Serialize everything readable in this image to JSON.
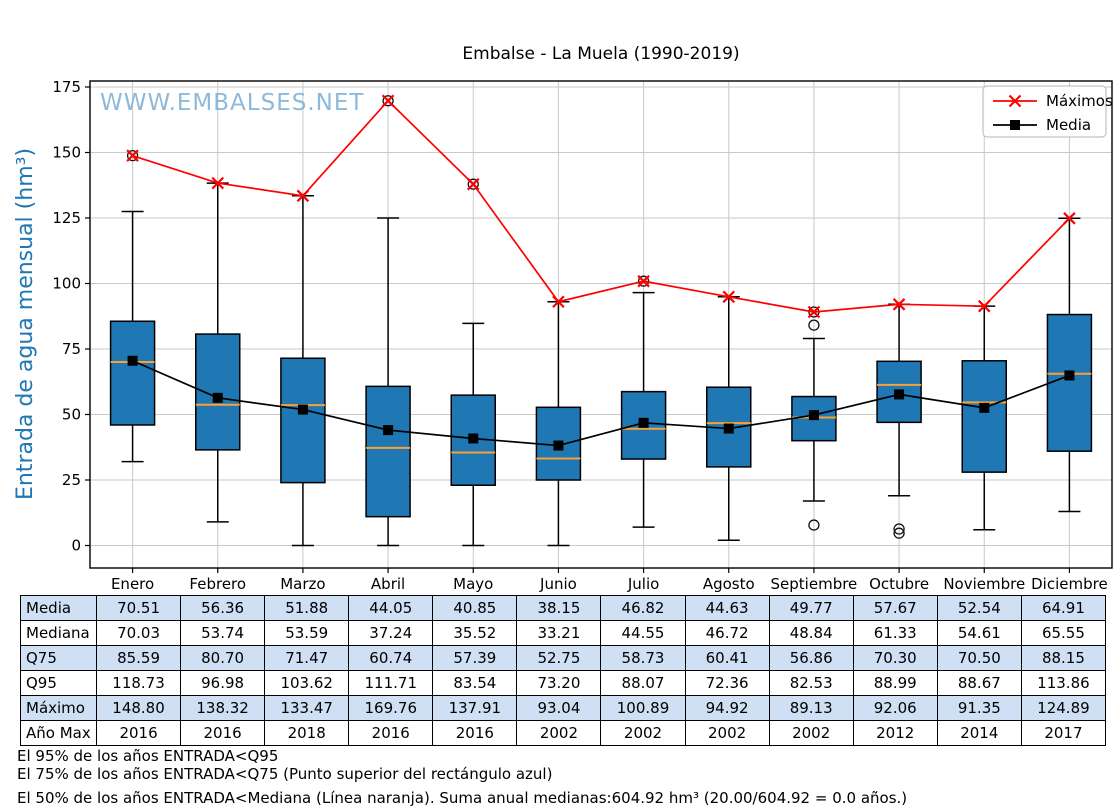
{
  "chart_data": {
    "type": "boxplot",
    "title": "Embalse - La Muela (1990-2019)",
    "ylabel": "Entrada de agua mensual (hm³)",
    "watermark": "WWW.EMBALSES.NET",
    "categories": [
      "Enero",
      "Febrero",
      "Marzo",
      "Abril",
      "Mayo",
      "Junio",
      "Julio",
      "Agosto",
      "Septiembre",
      "Octubre",
      "Noviembre",
      "Diciembre"
    ],
    "yticks": [
      0,
      25,
      50,
      75,
      100,
      125,
      150,
      175
    ],
    "ylim": [
      -9,
      178
    ],
    "grid": true,
    "legend_position": "upper right",
    "legend": [
      {
        "label": "Máximos",
        "color": "#ff0000",
        "marker": "x"
      },
      {
        "label": "Media",
        "color": "#000000",
        "marker": "square"
      }
    ],
    "boxes": [
      {
        "label": "Enero",
        "whisker_low": 32,
        "q1": 46,
        "median": 70.03,
        "q3": 85.59,
        "whisker_high": 127.5,
        "outliers_high": [
          148.8
        ],
        "outliers_low": []
      },
      {
        "label": "Febrero",
        "whisker_low": 9,
        "q1": 36.5,
        "median": 53.74,
        "q3": 80.7,
        "whisker_high": 138.32,
        "outliers_high": [],
        "outliers_low": []
      },
      {
        "label": "Marzo",
        "whisker_low": 0,
        "q1": 24,
        "median": 53.59,
        "q3": 71.47,
        "whisker_high": 133.47,
        "outliers_high": [],
        "outliers_low": []
      },
      {
        "label": "Abril",
        "whisker_low": 0,
        "q1": 11,
        "median": 37.24,
        "q3": 60.74,
        "whisker_high": 125,
        "outliers_high": [
          169.76
        ],
        "outliers_low": []
      },
      {
        "label": "Mayo",
        "whisker_low": 0,
        "q1": 23,
        "median": 35.52,
        "q3": 57.39,
        "whisker_high": 84.8,
        "outliers_high": [
          137.91
        ],
        "outliers_low": []
      },
      {
        "label": "Junio",
        "whisker_low": 0,
        "q1": 25,
        "median": 33.21,
        "q3": 52.75,
        "whisker_high": 93.04,
        "outliers_high": [],
        "outliers_low": []
      },
      {
        "label": "Julio",
        "whisker_low": 7,
        "q1": 33,
        "median": 44.55,
        "q3": 58.73,
        "whisker_high": 96.5,
        "outliers_high": [
          100.89
        ],
        "outliers_low": []
      },
      {
        "label": "Agosto",
        "whisker_low": 2,
        "q1": 30,
        "median": 46.72,
        "q3": 60.41,
        "whisker_high": 94.92,
        "outliers_high": [],
        "outliers_low": []
      },
      {
        "label": "Septiembre",
        "whisker_low": 17,
        "q1": 40,
        "median": 48.84,
        "q3": 56.86,
        "whisker_high": 79,
        "outliers_high": [
          84.1,
          89.13
        ],
        "outliers_low": [
          7.8
        ]
      },
      {
        "label": "Octubre",
        "whisker_low": 19,
        "q1": 47,
        "median": 61.33,
        "q3": 70.3,
        "whisker_high": 92.06,
        "outliers_high": [],
        "outliers_low": [
          6.3,
          4.7
        ]
      },
      {
        "label": "Noviembre",
        "whisker_low": 6,
        "q1": 28,
        "median": 54.61,
        "q3": 70.5,
        "whisker_high": 91.35,
        "outliers_high": [],
        "outliers_low": []
      },
      {
        "label": "Diciembre",
        "whisker_low": 13,
        "q1": 36,
        "median": 65.55,
        "q3": 88.15,
        "whisker_high": 124.89,
        "outliers_high": [],
        "outliers_low": []
      }
    ],
    "series": [
      {
        "name": "Máximos",
        "color": "#ff0000",
        "marker": "x",
        "values": [
          148.8,
          138.32,
          133.47,
          169.76,
          137.91,
          93.04,
          100.89,
          94.92,
          89.13,
          92.06,
          91.35,
          124.89
        ]
      },
      {
        "name": "Media",
        "color": "#000000",
        "marker": "square",
        "values": [
          70.51,
          56.36,
          51.88,
          44.05,
          40.85,
          38.15,
          46.82,
          44.63,
          49.77,
          57.67,
          52.54,
          64.91
        ]
      }
    ],
    "colors": {
      "box_fill": "#1f77b4",
      "box_edge": "#000000",
      "median_line": "#ffa033",
      "maximos_line": "#ff0000",
      "media_line": "#000000",
      "grid": "#c9c9c9",
      "watermark": "#7fb1d8",
      "ylabel": "#1f77b4",
      "table_row_alt": "#cfe0f5"
    }
  },
  "table": {
    "columns": [
      "Enero",
      "Febrero",
      "Marzo",
      "Abril",
      "Mayo",
      "Junio",
      "Julio",
      "Agosto",
      "Septiembre",
      "Octubre",
      "Noviembre",
      "Diciembre"
    ],
    "rows": [
      {
        "label": "Media",
        "values": [
          "70.51",
          "56.36",
          "51.88",
          "44.05",
          "40.85",
          "38.15",
          "46.82",
          "44.63",
          "49.77",
          "57.67",
          "52.54",
          "64.91"
        ]
      },
      {
        "label": "Mediana",
        "values": [
          "70.03",
          "53.74",
          "53.59",
          "37.24",
          "35.52",
          "33.21",
          "44.55",
          "46.72",
          "48.84",
          "61.33",
          "54.61",
          "65.55"
        ]
      },
      {
        "label": "Q75",
        "values": [
          "85.59",
          "80.70",
          "71.47",
          "60.74",
          "57.39",
          "52.75",
          "58.73",
          "60.41",
          "56.86",
          "70.30",
          "70.50",
          "88.15"
        ]
      },
      {
        "label": "Q95",
        "values": [
          "118.73",
          "96.98",
          "103.62",
          "111.71",
          "83.54",
          "73.20",
          "88.07",
          "72.36",
          "82.53",
          "88.99",
          "88.67",
          "113.86"
        ]
      },
      {
        "label": "Máximo",
        "values": [
          "148.80",
          "138.32",
          "133.47",
          "169.76",
          "137.91",
          "93.04",
          "100.89",
          "94.92",
          "89.13",
          "92.06",
          "91.35",
          "124.89"
        ]
      },
      {
        "label": "Año Max",
        "values": [
          "2016",
          "2016",
          "2018",
          "2016",
          "2016",
          "2002",
          "2002",
          "2002",
          "2002",
          "2012",
          "2014",
          "2017"
        ]
      }
    ]
  },
  "footer": {
    "line1": "El 95% de los años ENTRADA<Q95",
    "line2": "El 75% de los años ENTRADA<Q75 (Punto superior del rectángulo azul)",
    "line3": "El 50% de los años ENTRADA<Mediana (Línea naranja). Suma anual medianas:604.92 hm³ (20.00/604.92 = 0.0 años.)"
  }
}
